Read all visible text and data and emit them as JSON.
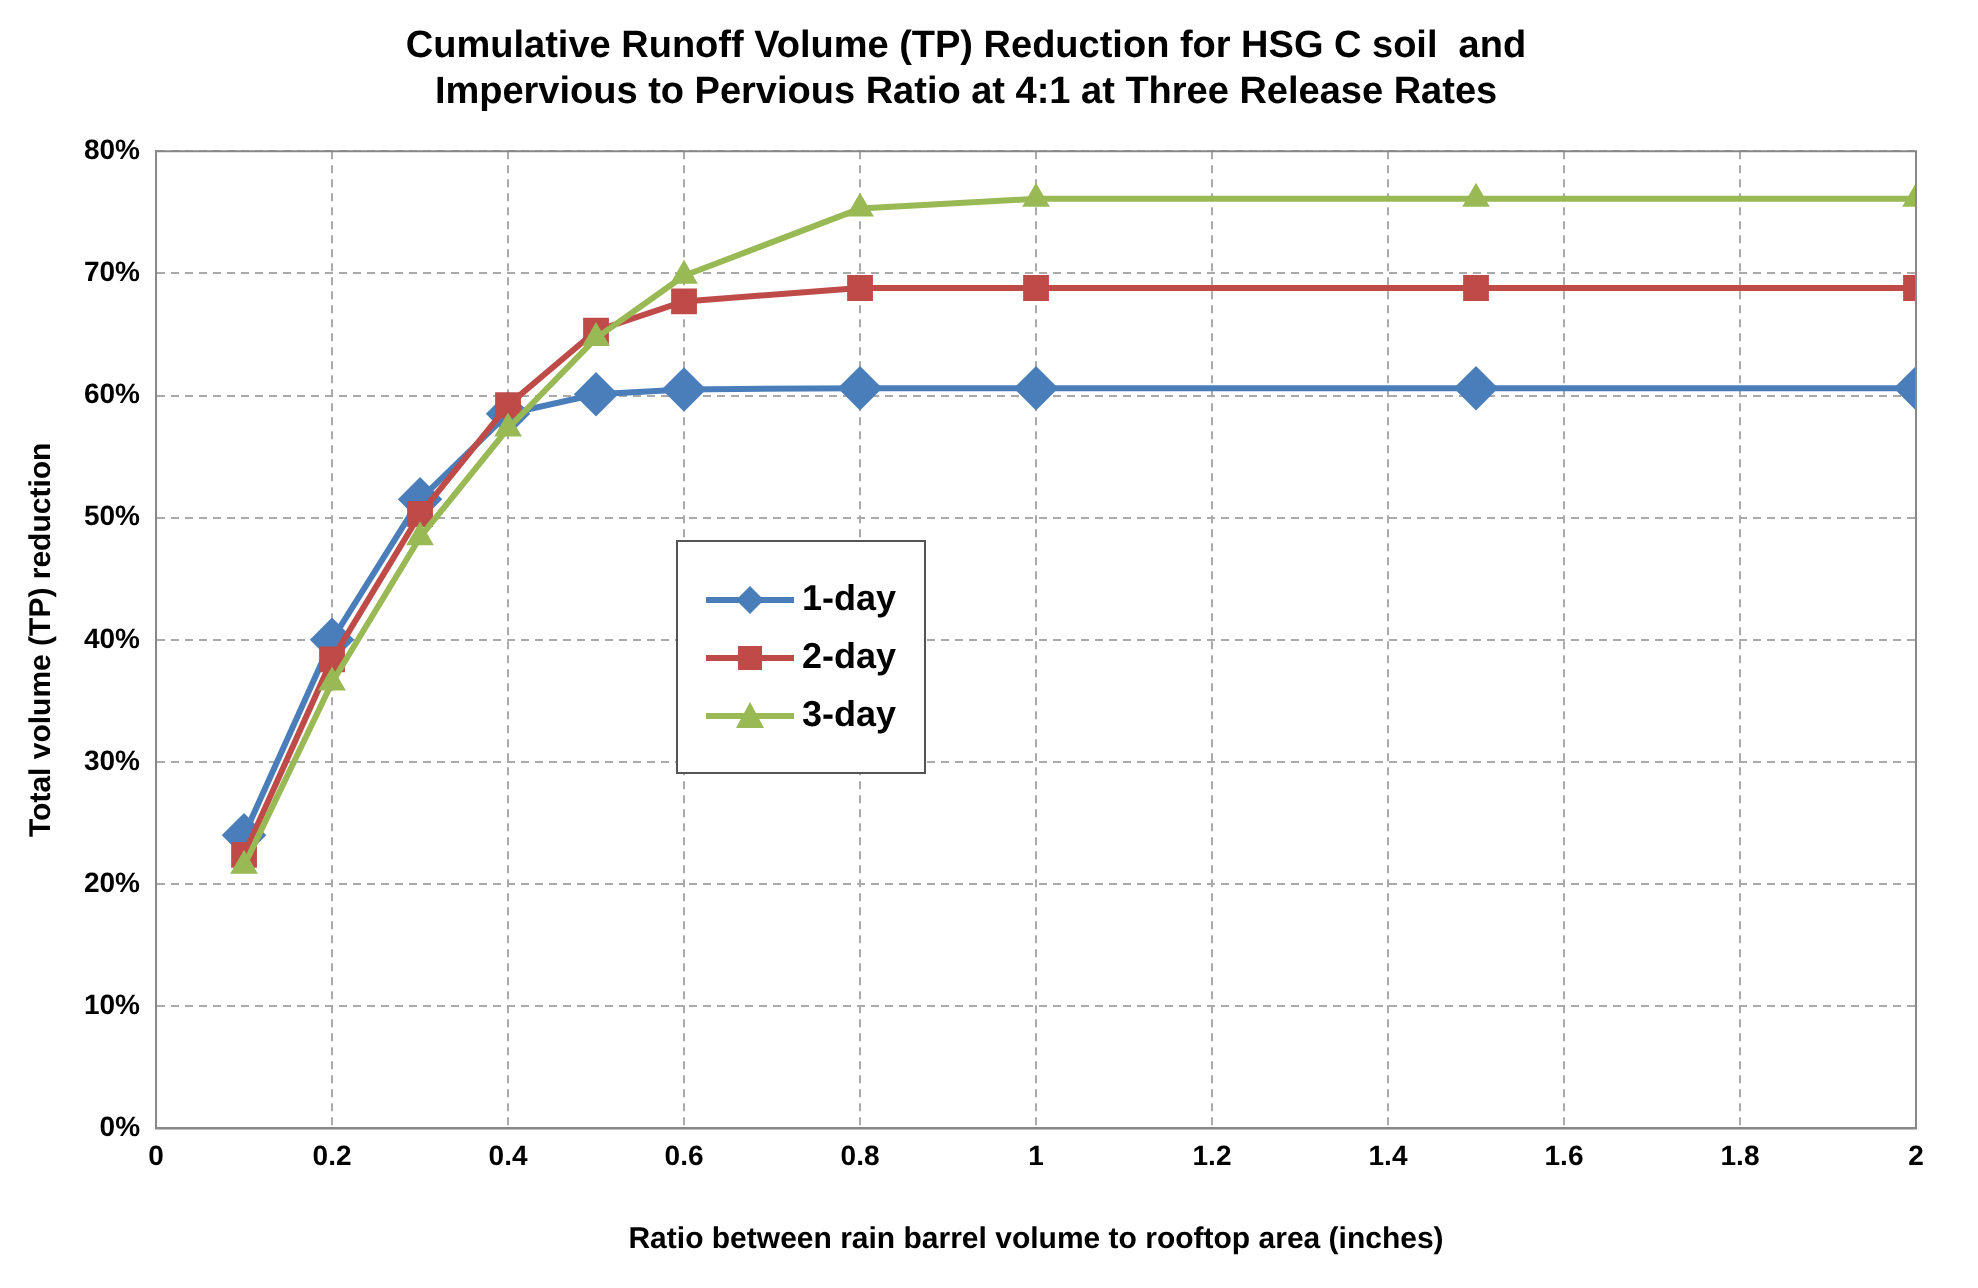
{
  "chart_data": {
    "type": "line",
    "title": [
      "Cumulative Runoff Volume (TP) Reduction for HSG C soil  and",
      "Impervious to Pervious Ratio at 4:1 at Three Release Rates"
    ],
    "xlabel": "Ratio between rain barrel volume to rooftop area (inches)",
    "ylabel": "Total volume (TP) reduction",
    "x": [
      0.1,
      0.2,
      0.3,
      0.4,
      0.5,
      0.6,
      0.8,
      1,
      1.5,
      2
    ],
    "series": [
      {
        "name": "1-day",
        "color": "#4a7ebb",
        "marker": "diamond",
        "values": [
          24,
          40,
          51.5,
          58.5,
          60.1,
          60.5,
          60.6,
          60.6,
          60.6,
          60.6
        ]
      },
      {
        "name": "2-day",
        "color": "#be4b48",
        "marker": "square",
        "values": [
          22.4,
          38.4,
          50.3,
          59.2,
          65.3,
          67.7,
          68.8,
          68.8,
          68.8,
          68.8
        ]
      },
      {
        "name": "3-day",
        "color": "#98b954",
        "marker": "triangle",
        "values": [
          21.5,
          36.5,
          48.4,
          57.3,
          64.7,
          69.8,
          75.3,
          76.1,
          76.1,
          76.1
        ]
      }
    ],
    "xlim": [
      0,
      2
    ],
    "xticks": [
      0,
      0.2,
      0.4,
      0.6,
      0.8,
      1,
      1.2,
      1.4,
      1.6,
      1.8,
      2
    ],
    "ylim": [
      0,
      80
    ],
    "yticks": [
      {
        "value": 0,
        "label": "0%"
      },
      {
        "value": 10,
        "label": "10%"
      },
      {
        "value": 20,
        "label": "20%"
      },
      {
        "value": 30,
        "label": "30%"
      },
      {
        "value": 40,
        "label": "40%"
      },
      {
        "value": 50,
        "label": "50%"
      },
      {
        "value": 60,
        "label": "60%"
      },
      {
        "value": 70,
        "label": "70%"
      },
      {
        "value": 80,
        "label": "80%"
      }
    ],
    "grid": true,
    "legend": "left",
    "line_style": "solid"
  }
}
